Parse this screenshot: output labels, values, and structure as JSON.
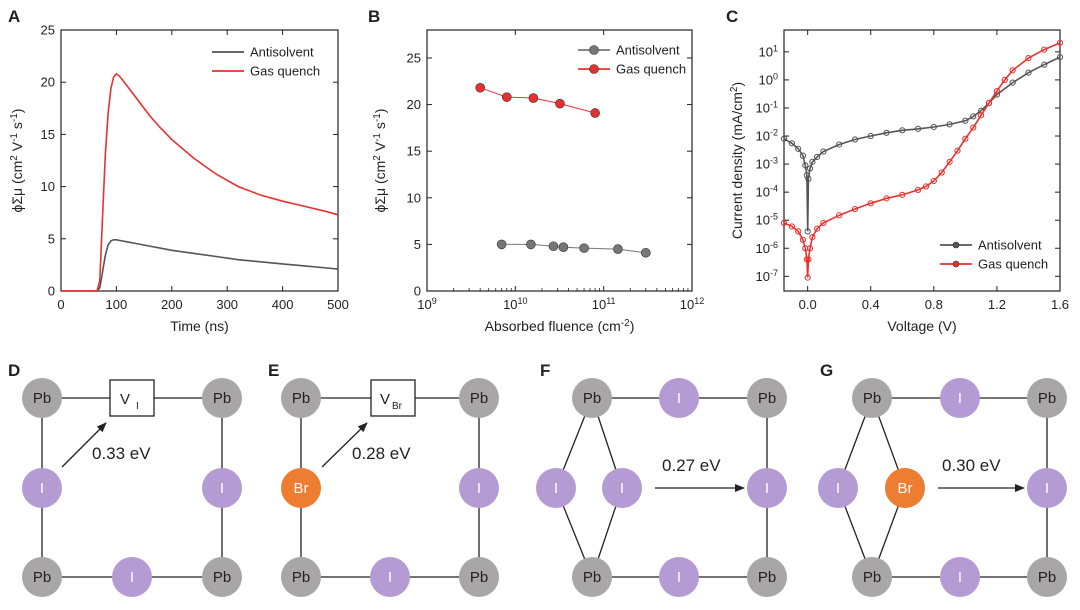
{
  "chart_data": [
    {
      "type": "line",
      "panel_label": "A",
      "xlabel": "Time (ns)",
      "ylabel": "ϕΣμ (cm² V⁻¹ s⁻¹)",
      "xlim": [
        0,
        500
      ],
      "ylim": [
        0,
        25
      ],
      "xticks": [
        0,
        100,
        200,
        300,
        400,
        500
      ],
      "yticks": [
        0,
        5,
        10,
        15,
        20,
        25
      ],
      "legend_position": "top-right",
      "series": [
        {
          "name": "Antisolvent",
          "color": "#555555",
          "x": [
            0,
            60,
            65,
            70,
            75,
            80,
            85,
            90,
            95,
            100,
            110,
            120,
            140,
            160,
            180,
            200,
            240,
            280,
            320,
            360,
            400,
            440,
            480,
            500
          ],
          "y": [
            0,
            0,
            0,
            0.3,
            1.8,
            3.4,
            4.4,
            4.8,
            4.9,
            4.9,
            4.8,
            4.7,
            4.5,
            4.3,
            4.1,
            3.9,
            3.6,
            3.3,
            3.0,
            2.8,
            2.6,
            2.4,
            2.2,
            2.1
          ]
        },
        {
          "name": "Gas quench",
          "color": "#e8312e",
          "x": [
            0,
            60,
            65,
            70,
            75,
            80,
            85,
            90,
            95,
            100,
            105,
            110,
            120,
            140,
            160,
            180,
            200,
            240,
            280,
            320,
            360,
            400,
            440,
            480,
            500
          ],
          "y": [
            0,
            0,
            0,
            1.0,
            7.0,
            13.0,
            17.0,
            19.4,
            20.5,
            20.8,
            20.6,
            20.3,
            19.6,
            18.2,
            16.8,
            15.6,
            14.5,
            12.7,
            11.2,
            10.0,
            9.2,
            8.6,
            8.1,
            7.6,
            7.3
          ]
        }
      ]
    },
    {
      "type": "scatter",
      "panel_label": "B",
      "xlabel": "Absorbed fluence (cm⁻²)",
      "ylabel": "ϕΣμ (cm² V⁻¹ s⁻¹)",
      "xscale": "log",
      "xlim": [
        1000000000.0,
        1000000000000.0
      ],
      "ylim": [
        0,
        28
      ],
      "xticks": [
        {
          "value": 1000000000.0,
          "base": "10",
          "exp": "9"
        },
        {
          "value": 10000000000.0,
          "base": "10",
          "exp": "10"
        },
        {
          "value": 100000000000.0,
          "base": "10",
          "exp": "11"
        },
        {
          "value": 1000000000000.0,
          "base": "10",
          "exp": "12"
        }
      ],
      "yticks": [
        0,
        5,
        10,
        15,
        20,
        25
      ],
      "legend_position": "top-right",
      "series": [
        {
          "name": "Antisolvent",
          "color": "#777777",
          "x": [
            7000000000.0,
            15000000000.0,
            27000000000.0,
            35000000000.0,
            60000000000.0,
            145000000000.0,
            300000000000.0
          ],
          "y": [
            5.0,
            5.0,
            4.8,
            4.7,
            4.6,
            4.5,
            4.1
          ]
        },
        {
          "name": "Gas quench",
          "color": "#e8312e",
          "x": [
            4000000000.0,
            8000000000.0,
            16000000000.0,
            32000000000.0,
            80000000000.0
          ],
          "y": [
            21.8,
            20.8,
            20.7,
            20.1,
            19.1
          ]
        }
      ]
    },
    {
      "type": "line",
      "panel_label": "C",
      "xlabel": "Voltage (V)",
      "ylabel": "Current density (mA/cm²)",
      "yscale": "log",
      "xlim": [
        -0.15,
        1.6
      ],
      "ylim": [
        3e-08,
        60
      ],
      "xticks": [
        0.0,
        0.4,
        0.8,
        1.2,
        1.6
      ],
      "xticklabels": [
        "0.0",
        "0.4",
        "0.8",
        "1.2",
        "1.6"
      ],
      "yticks": [
        {
          "value": 1e-07,
          "base": "10",
          "exp": "-7"
        },
        {
          "value": 1e-06,
          "base": "10",
          "exp": "-6"
        },
        {
          "value": 1e-05,
          "base": "10",
          "exp": "-5"
        },
        {
          "value": 0.0001,
          "base": "10",
          "exp": "-4"
        },
        {
          "value": 0.001,
          "base": "10",
          "exp": "-3"
        },
        {
          "value": 0.01,
          "base": "10",
          "exp": "-2"
        },
        {
          "value": 0.1,
          "base": "10",
          "exp": "-1"
        },
        {
          "value": 1,
          "base": "10",
          "exp": "0"
        },
        {
          "value": 10,
          "base": "10",
          "exp": "1"
        }
      ],
      "legend_position": "bottom-right",
      "series": [
        {
          "name": "Antisolvent",
          "color": "#555555",
          "x": [
            -0.15,
            -0.1,
            -0.06,
            -0.03,
            -0.015,
            -0.005,
            0.0,
            0.005,
            0.015,
            0.03,
            0.06,
            0.1,
            0.2,
            0.3,
            0.4,
            0.5,
            0.6,
            0.7,
            0.8,
            0.9,
            1.0,
            1.05,
            1.1,
            1.15,
            1.2,
            1.3,
            1.4,
            1.5,
            1.6
          ],
          "y": [
            0.008,
            0.0055,
            0.0035,
            0.002,
            0.0009,
            0.0004,
            4e-06,
            0.0003,
            0.0007,
            0.0012,
            0.0018,
            0.0028,
            0.005,
            0.0075,
            0.01,
            0.013,
            0.016,
            0.018,
            0.021,
            0.026,
            0.035,
            0.05,
            0.08,
            0.15,
            0.3,
            0.8,
            1.8,
            3.5,
            6.5
          ]
        },
        {
          "name": "Gas quench",
          "color": "#e8312e",
          "x": [
            -0.15,
            -0.1,
            -0.06,
            -0.03,
            -0.015,
            -0.005,
            0.0,
            0.005,
            0.015,
            0.03,
            0.06,
            0.1,
            0.2,
            0.3,
            0.4,
            0.5,
            0.6,
            0.7,
            0.75,
            0.8,
            0.85,
            0.9,
            0.95,
            1.0,
            1.05,
            1.1,
            1.15,
            1.2,
            1.25,
            1.3,
            1.4,
            1.5,
            1.6
          ],
          "y": [
            8e-06,
            6e-06,
            4e-06,
            2e-06,
            1e-06,
            4e-07,
            9e-08,
            4e-07,
            1e-06,
            2.5e-06,
            5e-06,
            8e-06,
            1.5e-05,
            2.5e-05,
            4e-05,
            6e-05,
            8e-05,
            0.00012,
            0.00016,
            0.00025,
            0.0005,
            0.0012,
            0.003,
            0.008,
            0.02,
            0.055,
            0.15,
            0.4,
            1.0,
            2.2,
            6.0,
            12.0,
            21.0
          ]
        }
      ]
    }
  ],
  "diagrams": {
    "d": {
      "label": "D",
      "top_left": "Pb",
      "top_right": "Pb",
      "bottom_left": "Pb",
      "bottom_right": "Pb",
      "left_mid": "I",
      "right_mid": "I",
      "bottom_mid": "I",
      "vacancy_main": "V",
      "vacancy_sub": "I",
      "energy": "0.33 eV"
    },
    "e": {
      "label": "E",
      "top_left": "Pb",
      "top_right": "Pb",
      "bottom_left": "Pb",
      "bottom_right": "Pb",
      "left_mid": "Br",
      "right_mid": "I",
      "bottom_mid": "I",
      "vacancy_main": "V",
      "vacancy_sub": "Br",
      "energy": "0.28 eV"
    },
    "f": {
      "label": "F",
      "top_left": "Pb",
      "top_mid": "I",
      "top_right": "Pb",
      "bottom_left": "Pb",
      "bottom_mid": "I",
      "bottom_right": "Pb",
      "outer_left": "I",
      "inner": "I",
      "right_mid": "I",
      "energy": "0.27 eV"
    },
    "g": {
      "label": "G",
      "top_left": "Pb",
      "top_mid": "I",
      "top_right": "Pb",
      "bottom_left": "Pb",
      "bottom_mid": "I",
      "bottom_right": "Pb",
      "outer_left": "I",
      "inner": "Br",
      "right_mid": "I",
      "energy": "0.30 eV"
    },
    "colors": {
      "pb": "#a8a6a6",
      "i": "#b49bd3",
      "br": "#ed7d31"
    }
  }
}
